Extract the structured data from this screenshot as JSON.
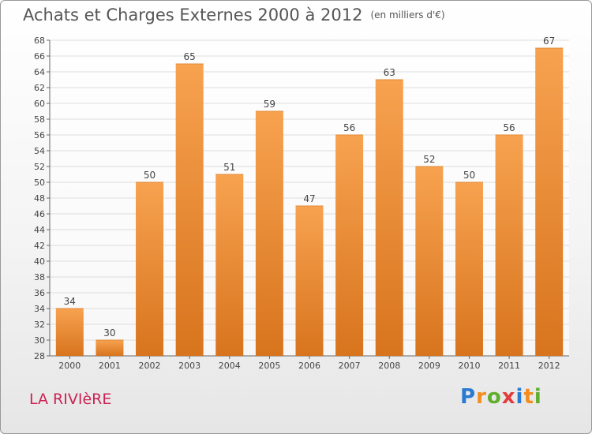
{
  "title": "Achats et Charges Externes 2000 à 2012",
  "subtitle": "(en milliers d'€)",
  "place": "LA RIVIèRE",
  "logo": {
    "text": "Proxiti",
    "letters": [
      {
        "ch": "P",
        "color": "#2a7ad1"
      },
      {
        "ch": "r",
        "color": "#f28c1e"
      },
      {
        "ch": "o",
        "color": "#5fae2e"
      },
      {
        "ch": "x",
        "color": "#e23c3c"
      },
      {
        "ch": "i",
        "color": "#2a7ad1"
      },
      {
        "ch": "t",
        "color": "#f28c1e"
      },
      {
        "ch": "i",
        "color": "#5fae2e"
      }
    ]
  },
  "colors": {
    "bar_top": "#f7a24f",
    "bar_bottom": "#d8741e",
    "grid": "#dddddd",
    "axis": "#666666",
    "text": "#444444"
  },
  "chart_data": {
    "type": "bar",
    "categories": [
      "2000",
      "2001",
      "2002",
      "2003",
      "2004",
      "2005",
      "2006",
      "2007",
      "2008",
      "2009",
      "2010",
      "2011",
      "2012"
    ],
    "values": [
      34,
      30,
      50,
      65,
      51,
      59,
      47,
      56,
      63,
      52,
      50,
      56,
      67
    ],
    "ylim": [
      28,
      68
    ],
    "yticks": [
      28,
      30,
      32,
      34,
      36,
      38,
      40,
      42,
      44,
      46,
      48,
      50,
      52,
      54,
      56,
      58,
      60,
      62,
      64,
      66,
      68
    ],
    "grid": true,
    "title": "Achats et Charges Externes 2000 à 2012",
    "xlabel": "",
    "ylabel": ""
  }
}
